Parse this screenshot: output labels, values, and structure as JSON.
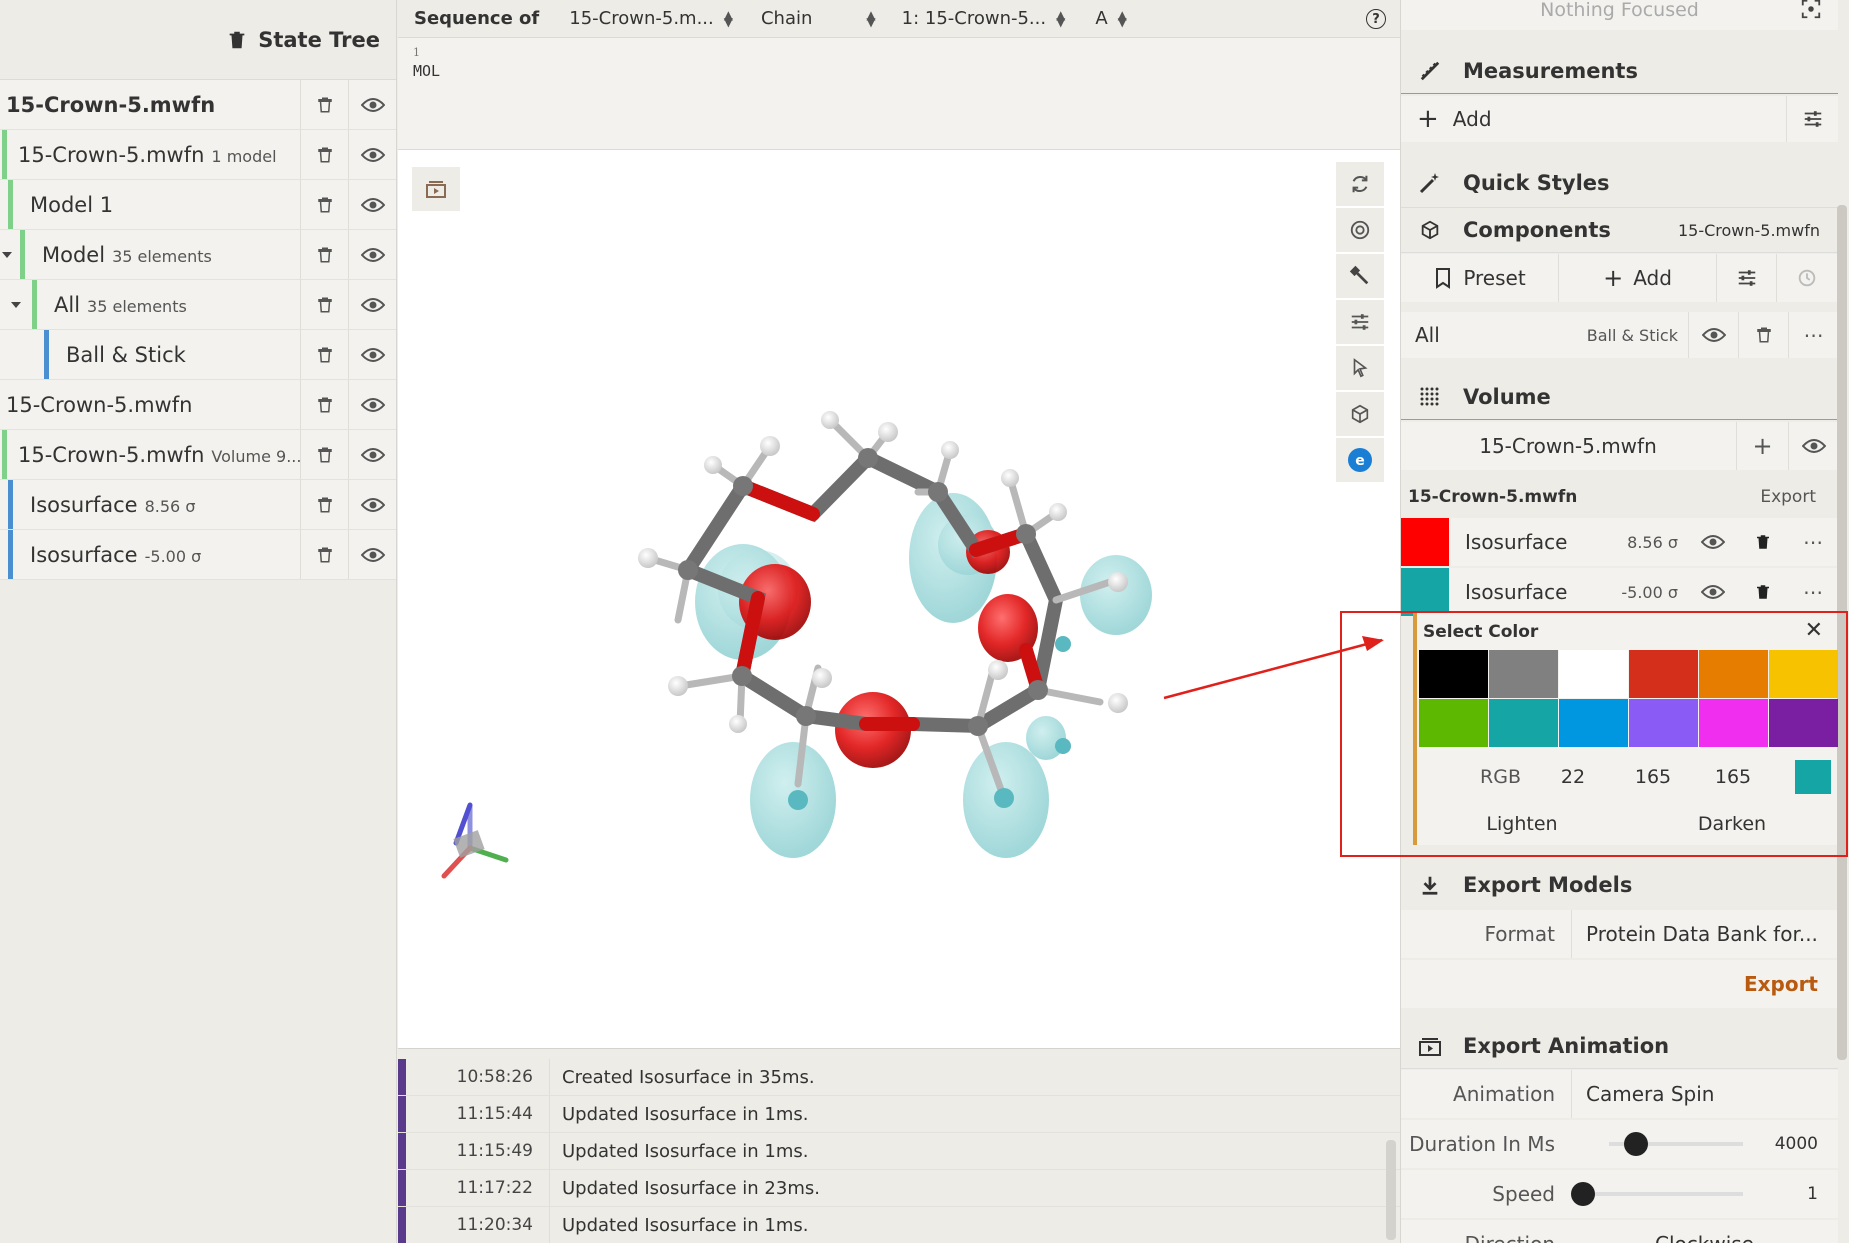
{
  "state_tree": {
    "title": "State Tree",
    "rows": [
      {
        "label": "15-Crown-5.mwfn",
        "sub": ""
      },
      {
        "label": "15-Crown-5.mwfn",
        "sub": "1 model"
      },
      {
        "label": "Model 1",
        "sub": ""
      },
      {
        "label": "Model",
        "sub": "35 elements"
      },
      {
        "label": "All",
        "sub": "35 elements"
      },
      {
        "label": "Ball & Stick",
        "sub": ""
      },
      {
        "label": "15-Crown-5.mwfn",
        "sub": ""
      },
      {
        "label": "15-Crown-5.mwfn",
        "sub": "Volume 9..."
      },
      {
        "label": "Isosurface",
        "sub": "8.56 σ"
      },
      {
        "label": "Isosurface",
        "sub": "-5.00 σ"
      }
    ]
  },
  "sequence": {
    "label": "Sequence of",
    "structure": "15-Crown-5.m...",
    "mode": "Chain",
    "entity": "1: 15-Crown-5...",
    "chain": "A",
    "help": "?",
    "index": "1",
    "residue": "MOL"
  },
  "log": [
    {
      "time": "10:58:26",
      "msg": "Created Isosurface in 35ms."
    },
    {
      "time": "11:15:44",
      "msg": "Updated Isosurface in 1ms."
    },
    {
      "time": "11:15:49",
      "msg": "Updated Isosurface in 1ms."
    },
    {
      "time": "11:17:22",
      "msg": "Updated Isosurface in 23ms."
    },
    {
      "time": "11:20:34",
      "msg": "Updated Isosurface in 1ms."
    }
  ],
  "right": {
    "focus": "Nothing Focused",
    "measurements": {
      "title": "Measurements",
      "add": "Add"
    },
    "quick_styles": "Quick Styles",
    "components": {
      "title": "Components",
      "target": "15-Crown-5.mwfn",
      "preset": "Preset",
      "add": "Add",
      "item": {
        "label": "All",
        "rep": "Ball & Stick"
      }
    },
    "volume": {
      "title": "Volume",
      "source": "15-Crown-5.mwfn",
      "header": "15-Crown-5.mwfn",
      "export": "Export",
      "isos": [
        {
          "label": "Isosurface",
          "value": "8.56 σ",
          "color": "#ff0000"
        },
        {
          "label": "Isosurface",
          "value": "-5.00 σ",
          "color": "#16a5a5"
        }
      ]
    },
    "picker": {
      "title": "Select Color",
      "swatches": [
        "#000000",
        "#808080",
        "#ffffff",
        "#d32f1a",
        "#e67c00",
        "#f7c200",
        "#5cb800",
        "#16a5a5",
        "#0096e0",
        "#8a5cf5",
        "#f02ef0",
        "#7a1fa2"
      ],
      "mode": "RGB",
      "r": "22",
      "g": "165",
      "b": "165",
      "current": "#16a5a5",
      "lighten": "Lighten",
      "darken": "Darken"
    },
    "export_models": {
      "title": "Export Models",
      "format_label": "Format",
      "format_value": "Protein Data Bank for...",
      "export": "Export"
    },
    "export_animation": {
      "title": "Export Animation",
      "animation_label": "Animation",
      "animation_value": "Camera Spin",
      "duration_label": "Duration In Ms",
      "duration_value": "4000",
      "duration_fraction": 0.2,
      "speed_label": "Speed",
      "speed_value": "1",
      "speed_fraction": 0.0,
      "direction_label": "Direction",
      "direction_value": "Clockwise"
    }
  }
}
